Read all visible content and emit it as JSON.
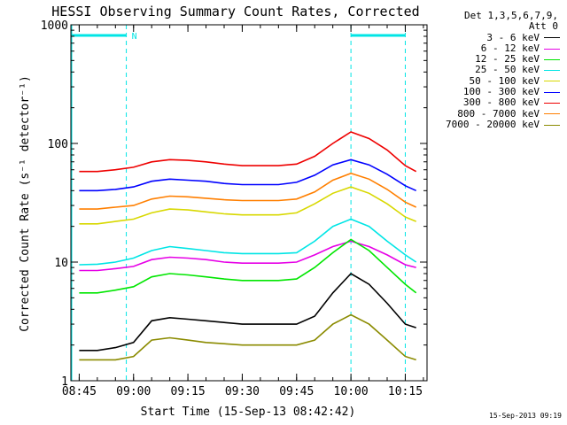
{
  "title": "HESSI Observing Summary Count Rates, Corrected",
  "xlabel": "Start Time (15-Sep-13 08:42:42)",
  "ylabel": "Corrected Count Rate (s⁻¹ detector⁻¹)",
  "timestamp": "15-Sep-2013 09:19",
  "legend": {
    "detector_line": "Det 1,3,5,6,7,9,",
    "attenuator_line": "Att 0"
  },
  "night_flag": "N",
  "colors": {
    "axes": "#000000",
    "flag": "#00e5e5"
  },
  "chart_data": {
    "type": "line",
    "yscale": "log",
    "ylim": [
      1,
      1000
    ],
    "xlim": [
      "08:42:42",
      "10:21:00"
    ],
    "x_tick_labels": [
      "08:45",
      "09:00",
      "09:15",
      "09:30",
      "09:45",
      "10:00",
      "10:15"
    ],
    "y_tick_labels": [
      "1",
      "10",
      "100",
      "1000"
    ],
    "x": [
      "08:45",
      "08:50",
      "08:55",
      "09:00",
      "09:05",
      "09:10",
      "09:15",
      "09:20",
      "09:25",
      "09:30",
      "09:35",
      "09:40",
      "09:45",
      "09:50",
      "09:55",
      "10:00",
      "10:05",
      "10:10",
      "10:15",
      "10:18"
    ],
    "series": [
      {
        "name": "3 - 6 keV",
        "color": "#000000",
        "values": [
          1.8,
          1.8,
          1.9,
          2.1,
          3.2,
          3.4,
          3.3,
          3.2,
          3.1,
          3,
          3,
          3,
          3,
          3.5,
          5.5,
          8,
          6.5,
          4.5,
          3,
          2.8
        ]
      },
      {
        "name": "6 - 12 keV",
        "color": "#e600e6",
        "values": [
          8.5,
          8.5,
          8.8,
          9.2,
          10.5,
          11,
          10.8,
          10.5,
          10,
          9.8,
          9.8,
          9.8,
          10,
          11.5,
          13.5,
          15,
          13.5,
          11.5,
          9.5,
          9
        ]
      },
      {
        "name": "12 - 25 keV",
        "color": "#00e600",
        "values": [
          5.5,
          5.5,
          5.8,
          6.2,
          7.5,
          8,
          7.8,
          7.5,
          7.2,
          7,
          7,
          7,
          7.2,
          9,
          12,
          15.5,
          12.5,
          9,
          6.5,
          5.5
        ]
      },
      {
        "name": "25 - 50 keV",
        "color": "#00e5e5",
        "values": [
          9.5,
          9.6,
          10,
          10.8,
          12.5,
          13.5,
          13,
          12.5,
          12,
          11.8,
          11.8,
          11.8,
          12,
          15,
          20,
          23,
          20,
          15,
          11.5,
          10
        ]
      },
      {
        "name": "50 - 100 keV",
        "color": "#d8d800",
        "values": [
          21,
          21,
          22,
          23,
          26,
          28,
          27.5,
          26.5,
          25.5,
          25,
          25,
          25,
          26,
          31,
          38,
          43,
          38,
          31,
          24,
          22
        ]
      },
      {
        "name": "100 - 300 keV",
        "color": "#0000ff",
        "values": [
          40,
          40,
          41,
          43,
          48,
          50,
          49,
          48,
          46,
          45,
          45,
          45,
          47,
          54,
          66,
          73,
          66,
          55,
          44,
          40
        ]
      },
      {
        "name": "300 - 800 keV",
        "color": "#ee0000",
        "values": [
          58,
          58,
          60,
          63,
          70,
          73,
          72,
          70,
          67,
          65,
          65,
          65,
          67,
          78,
          100,
          125,
          110,
          88,
          65,
          58
        ]
      },
      {
        "name": "800 - 7000 keV",
        "color": "#ff7f00",
        "values": [
          28,
          28,
          29,
          30,
          34,
          36,
          35.5,
          34.5,
          33.5,
          33,
          33,
          33,
          34,
          39,
          49,
          56,
          50,
          41,
          32,
          29
        ]
      },
      {
        "name": "7000 - 20000 keV",
        "color": "#8b8b00",
        "values": [
          1.5,
          1.5,
          1.5,
          1.6,
          2.2,
          2.3,
          2.2,
          2.1,
          2.05,
          2,
          2,
          2,
          2,
          2.2,
          3,
          3.6,
          3,
          2.2,
          1.6,
          1.5
        ]
      }
    ],
    "night_intervals": [
      [
        "08:42:42",
        "08:58"
      ],
      [
        "10:00",
        "10:15"
      ]
    ],
    "grid": false,
    "legend_position": "right"
  }
}
